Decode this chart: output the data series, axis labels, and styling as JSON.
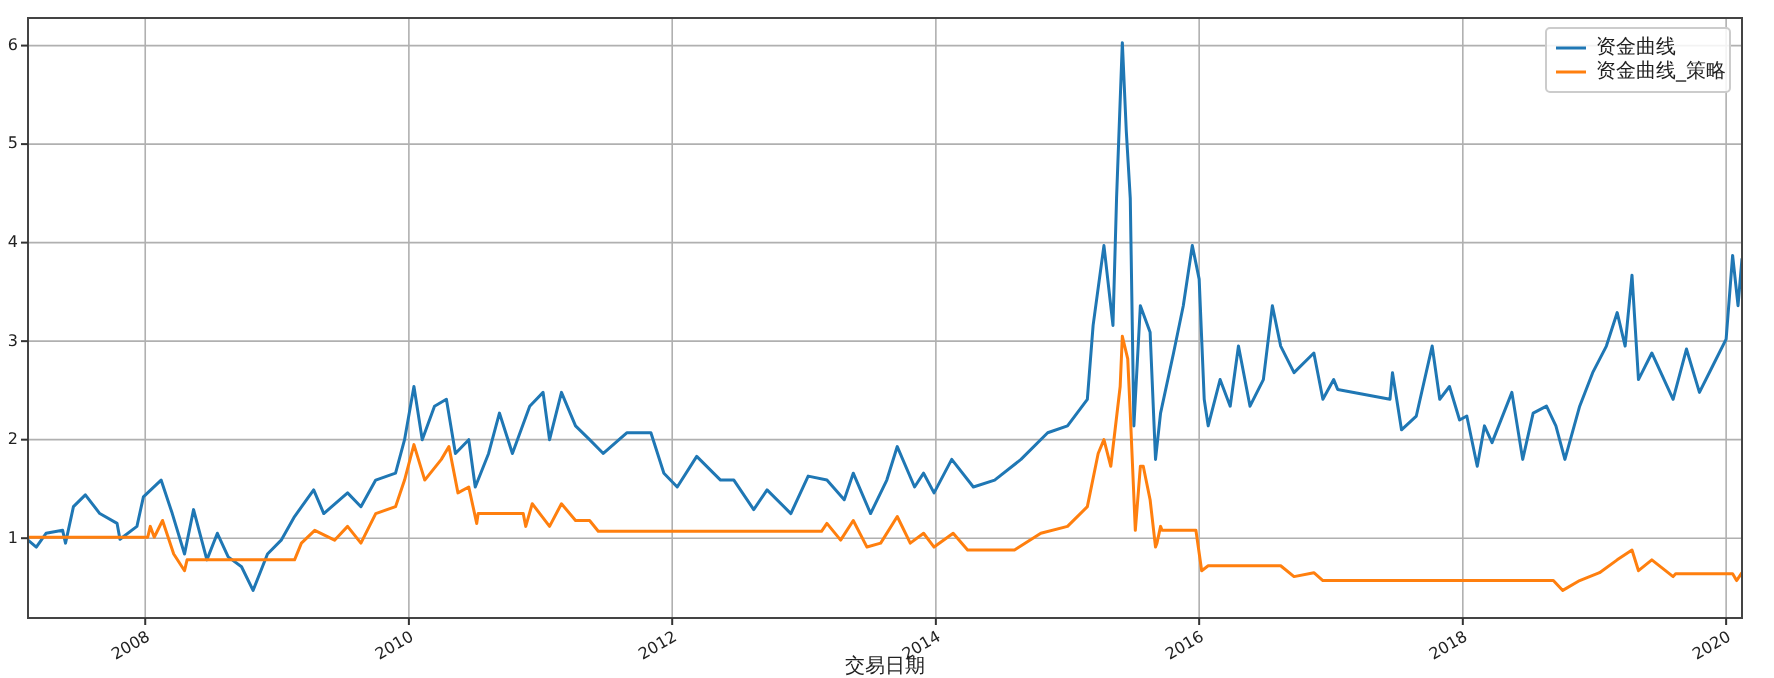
{
  "chart_data": {
    "type": "line",
    "xlabel": "交易日期",
    "xlim": [
      "2007-02-10",
      "2020-02-14"
    ],
    "xticks": [
      "2008",
      "2010",
      "2012",
      "2014",
      "2016",
      "2018",
      "2020"
    ],
    "ylim": [
      0.19,
      6.28
    ],
    "yticks": [
      1,
      2,
      3,
      4,
      5,
      6
    ],
    "grid": true,
    "legend": "top right",
    "line_style": "solid",
    "marker": "none",
    "series": [
      {
        "name": "资金曲线",
        "color": "#1f77b4",
        "x": [
          "2007-02-10",
          "2007-03-05",
          "2007-04-01",
          "2007-05-17",
          "2007-05-25",
          "2007-06-16",
          "2007-07-19",
          "2007-08-28",
          "2007-10-15",
          "2007-10-23",
          "2007-12-09",
          "2007-12-27",
          "2008-02-14",
          "2008-03-16",
          "2008-04-19",
          "2008-05-14",
          "2008-06-20",
          "2008-07-19",
          "2008-08-18",
          "2008-09-24",
          "2008-10-26",
          "2008-12-05",
          "2009-01-12",
          "2009-02-18",
          "2009-04-12",
          "2009-05-10",
          "2009-07-15",
          "2009-08-21",
          "2009-10-01",
          "2009-11-25",
          "2009-12-20",
          "2010-01-15",
          "2010-02-07",
          "2010-03-13",
          "2010-04-15",
          "2010-05-10",
          "2010-06-16",
          "2010-07-04",
          "2010-08-10",
          "2010-09-09",
          "2010-10-15",
          "2010-12-02",
          "2011-01-08",
          "2011-01-26",
          "2011-02-28",
          "2011-04-08",
          "2011-05-17",
          "2011-06-24",
          "2011-08-28",
          "2011-11-03",
          "2011-12-09",
          "2012-01-15",
          "2012-03-09",
          "2012-05-14",
          "2012-06-20",
          "2012-08-14",
          "2012-09-20",
          "2012-11-25",
          "2013-01-12",
          "2013-03-05",
          "2013-04-22",
          "2013-05-17",
          "2013-07-04",
          "2013-08-18",
          "2013-09-16",
          "2013-11-03",
          "2013-11-28",
          "2013-12-27",
          "2014-02-14",
          "2014-04-15",
          "2014-06-13",
          "2014-08-25",
          "2014-11-07",
          "2015-01-01",
          "2015-02-25",
          "2015-03-13",
          "2015-04-12",
          "2015-05-07",
          "2015-05-17",
          "2015-06-02",
          "2015-06-13",
          "2015-06-24",
          "2015-07-04",
          "2015-07-22",
          "2015-08-18",
          "2015-09-02",
          "2015-09-16",
          "2015-10-22",
          "2015-11-18",
          "2015-12-13",
          "2016-01-01",
          "2016-01-15",
          "2016-01-26",
          "2016-02-28",
          "2016-03-27",
          "2016-04-19",
          "2016-05-21",
          "2016-06-27",
          "2016-07-22",
          "2016-08-14",
          "2016-09-20",
          "2016-11-14",
          "2016-12-09",
          "2017-01-08",
          "2017-01-19",
          "2017-06-13",
          "2017-06-20",
          "2017-07-15",
          "2017-08-25",
          "2017-10-08",
          "2017-10-29",
          "2017-11-25",
          "2017-12-23",
          "2018-01-12",
          "2018-02-10",
          "2018-03-02",
          "2018-03-23",
          "2018-05-17",
          "2018-06-16",
          "2018-07-15",
          "2018-08-21",
          "2018-09-16",
          "2018-10-11",
          "2018-11-21",
          "2018-12-27",
          "2019-02-03",
          "2019-03-05",
          "2019-03-27",
          "2019-04-15",
          "2019-05-03",
          "2019-06-09",
          "2019-08-07",
          "2019-09-13",
          "2019-10-19",
          "2019-11-25",
          "2020-01-01",
          "2020-01-19",
          "2020-02-03",
          "2020-02-14"
        ],
        "values": [
          0.98,
          0.91,
          1.05,
          1.08,
          0.95,
          1.32,
          1.44,
          1.25,
          1.15,
          0.99,
          1.12,
          1.42,
          1.59,
          1.25,
          0.84,
          1.29,
          0.78,
          1.05,
          0.81,
          0.71,
          0.47,
          0.84,
          0.98,
          1.22,
          1.49,
          1.25,
          1.46,
          1.32,
          1.59,
          1.66,
          2.0,
          2.54,
          2.0,
          2.34,
          2.41,
          1.86,
          2.0,
          1.52,
          1.86,
          2.27,
          1.86,
          2.34,
          2.48,
          2.0,
          2.48,
          2.14,
          2.0,
          1.86,
          2.07,
          2.07,
          1.66,
          1.52,
          1.83,
          1.59,
          1.59,
          1.29,
          1.49,
          1.25,
          1.63,
          1.59,
          1.39,
          1.66,
          1.25,
          1.59,
          1.93,
          1.52,
          1.66,
          1.46,
          1.8,
          1.52,
          1.59,
          1.8,
          2.07,
          2.14,
          2.41,
          3.16,
          3.97,
          3.16,
          4.45,
          6.03,
          5.13,
          4.45,
          2.14,
          3.36,
          3.09,
          1.8,
          2.27,
          2.88,
          3.36,
          3.97,
          3.63,
          2.41,
          2.14,
          2.61,
          2.34,
          2.95,
          2.34,
          2.61,
          3.36,
          2.95,
          2.68,
          2.88,
          2.41,
          2.61,
          2.51,
          2.41,
          2.68,
          2.1,
          2.24,
          2.95,
          2.41,
          2.54,
          2.2,
          2.24,
          1.73,
          2.14,
          1.97,
          2.48,
          1.8,
          2.27,
          2.34,
          2.14,
          1.8,
          2.34,
          2.68,
          2.95,
          3.29,
          2.95,
          3.67,
          2.61,
          2.88,
          2.41,
          2.92,
          2.48,
          2.75,
          3.02,
          3.87,
          3.36,
          3.84
        ]
      },
      {
        "name": "资金曲线_策略",
        "color": "#ff7f0e",
        "x": [
          "2007-02-10",
          "2008-01-08",
          "2008-01-15",
          "2008-01-26",
          "2008-02-18",
          "2008-03-20",
          "2008-04-19",
          "2008-04-26",
          "2009-02-18",
          "2009-03-09",
          "2009-04-15",
          "2009-06-09",
          "2009-07-15",
          "2009-08-21",
          "2009-10-01",
          "2009-11-25",
          "2009-12-20",
          "2010-01-15",
          "2010-02-14",
          "2010-04-01",
          "2010-04-22",
          "2010-05-17",
          "2010-06-16",
          "2010-07-08",
          "2010-07-12",
          "2010-11-14",
          "2010-11-21",
          "2010-12-09",
          "2011-01-26",
          "2011-02-28",
          "2011-04-08",
          "2011-05-17",
          "2011-06-10",
          "2013-02-18",
          "2013-03-05",
          "2013-04-12",
          "2013-05-17",
          "2013-06-24",
          "2013-08-01",
          "2013-09-16",
          "2013-10-22",
          "2013-11-28",
          "2013-12-27",
          "2014-02-18",
          "2014-03-30",
          "2014-08-07",
          "2014-10-19",
          "2015-01-01",
          "2015-02-25",
          "2015-03-27",
          "2015-04-12",
          "2015-05-01",
          "2015-05-27",
          "2015-06-02",
          "2015-06-17",
          "2015-06-24",
          "2015-07-08",
          "2015-07-22",
          "2015-07-30",
          "2015-08-18",
          "2015-09-02",
          "2015-09-06",
          "2015-09-16",
          "2015-09-20",
          "2015-12-23",
          "2016-01-08",
          "2016-01-26",
          "2016-08-14",
          "2016-09-20",
          "2016-11-14",
          "2016-12-09",
          "2018-09-09",
          "2018-10-05",
          "2018-11-21",
          "2019-01-15",
          "2019-03-05",
          "2019-04-15",
          "2019-05-03",
          "2019-06-09",
          "2019-08-07",
          "2019-08-14",
          "2020-01-19",
          "2020-01-30",
          "2020-02-14"
        ],
        "values": [
          1.01,
          1.01,
          1.12,
          1.01,
          1.18,
          0.84,
          0.67,
          0.78,
          0.78,
          0.95,
          1.08,
          0.98,
          1.12,
          0.95,
          1.25,
          1.32,
          1.59,
          1.95,
          1.59,
          1.8,
          1.93,
          1.46,
          1.52,
          1.15,
          1.25,
          1.25,
          1.12,
          1.35,
          1.12,
          1.35,
          1.18,
          1.18,
          1.07,
          1.07,
          1.15,
          0.98,
          1.18,
          0.91,
          0.95,
          1.22,
          0.95,
          1.05,
          0.91,
          1.05,
          0.88,
          0.88,
          1.05,
          1.12,
          1.32,
          1.86,
          2.0,
          1.73,
          2.54,
          3.05,
          2.82,
          2.27,
          1.08,
          1.73,
          1.73,
          1.39,
          0.91,
          0.95,
          1.12,
          1.08,
          1.08,
          0.67,
          0.72,
          0.72,
          0.61,
          0.65,
          0.57,
          0.57,
          0.47,
          0.57,
          0.65,
          0.78,
          0.88,
          0.67,
          0.78,
          0.61,
          0.64,
          0.64,
          0.57,
          0.65
        ]
      }
    ]
  }
}
